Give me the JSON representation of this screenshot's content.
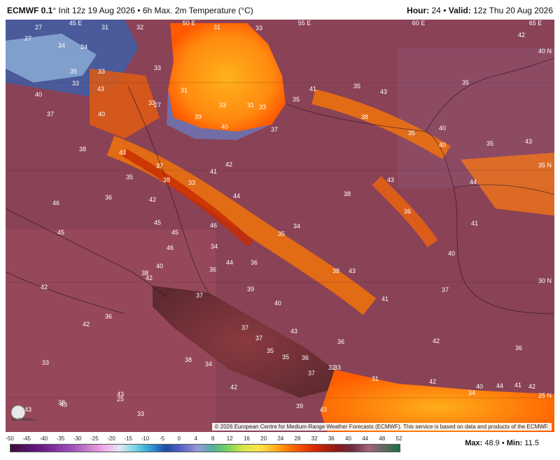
{
  "header": {
    "model": "ECMWF 0.1",
    "degree": "°",
    "init": "Init 12z 19 Aug 2026",
    "bullet": "•",
    "product": "6h Max. 2m Temperature (°C)",
    "hour_label": "Hour:",
    "hour_value": "24",
    "valid_label": "Valid:",
    "valid_value": "12z Thu 20 Aug 2026"
  },
  "map": {
    "meridians": [
      "45 E",
      "50 E",
      "55 E",
      "60 E",
      "65 E"
    ],
    "parallels": [
      "40 N",
      "35 N",
      "30 N",
      "25 N"
    ],
    "copyright": "© 2026 European Centre for Medium-Range Weather Forecasts (ECMWF). This service is based on data and products of the ECMWF.",
    "logo_text": "WEATHERBELL",
    "temperature_labels": [
      "27",
      "31",
      "32",
      "31",
      "33",
      "42",
      "27",
      "34",
      "24",
      "33",
      "33",
      "35",
      "33",
      "43",
      "35",
      "40",
      "31",
      "27",
      "33",
      "31",
      "33",
      "35",
      "41",
      "35",
      "43",
      "40",
      "37",
      "33",
      "40",
      "40",
      "39",
      "37",
      "35",
      "38",
      "43",
      "40",
      "35",
      "38",
      "43",
      "37",
      "41",
      "42",
      "35",
      "38",
      "33",
      "43",
      "44",
      "38",
      "36",
      "42",
      "46",
      "44",
      "34",
      "36",
      "45",
      "41",
      "46",
      "45",
      "45",
      "46",
      "34",
      "35",
      "44",
      "36",
      "38",
      "40",
      "38",
      "36",
      "43",
      "39",
      "40",
      "42",
      "42",
      "36",
      "37",
      "37",
      "40",
      "42",
      "41",
      "43",
      "37",
      "37",
      "36",
      "38",
      "35",
      "35",
      "36",
      "34",
      "42",
      "36",
      "37",
      "42",
      "32",
      "33",
      "43",
      "33",
      "33",
      "31",
      "42",
      "41",
      "40",
      "44",
      "42",
      "38",
      "43",
      "43",
      "25",
      "43",
      "39",
      "34"
    ],
    "legend_ticks": [
      "-50",
      "-45",
      "-40",
      "-35",
      "-30",
      "-25",
      "-20",
      "-15",
      "-10",
      "-5",
      "0",
      "4",
      "8",
      "12",
      "16",
      "20",
      "24",
      "28",
      "32",
      "36",
      "40",
      "44",
      "48",
      "52"
    ],
    "max_label": "Max:",
    "max_value": "48.9",
    "min_label": "Min:",
    "min_value": "11.5"
  }
}
